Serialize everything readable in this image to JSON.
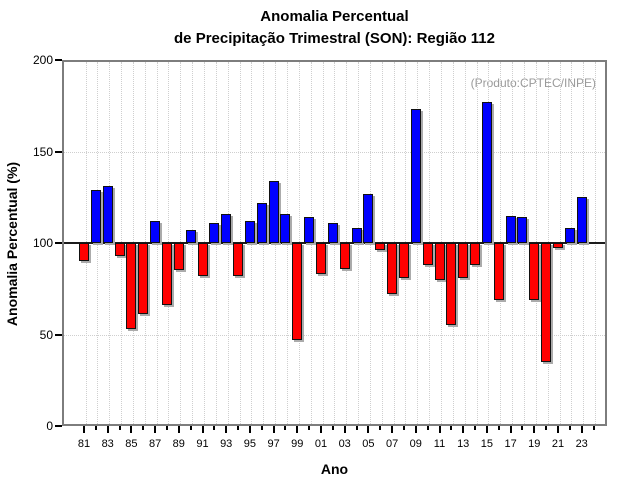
{
  "header": {
    "title_line1": "Anomalia Percentual",
    "title_line2": "de Precipitação Trimestral (SON): Região 112",
    "annotation": "(Produto:CPTEC/INPE)"
  },
  "chart_data": {
    "type": "bar",
    "title": "Anomalia Percentual de Precipitação Trimestral (SON): Região 112",
    "xlabel": "Ano",
    "ylabel": "Anomalia Percentual (%)",
    "ylim": [
      0,
      200
    ],
    "yticks": [
      0,
      50,
      100,
      150,
      200
    ],
    "baseline": 100,
    "grid": "dotted",
    "legend": "none",
    "bar_colors": {
      "above_baseline": "#0000ff",
      "below_baseline": "#ff0000"
    },
    "xtick_labels": [
      "81",
      "83",
      "85",
      "87",
      "89",
      "91",
      "93",
      "95",
      "97",
      "99",
      "01",
      "03",
      "05",
      "07",
      "09",
      "11",
      "13",
      "15",
      "17",
      "19",
      "21",
      "23"
    ],
    "years": [
      1981,
      1982,
      1983,
      1984,
      1985,
      1986,
      1987,
      1988,
      1989,
      1990,
      1991,
      1992,
      1993,
      1994,
      1995,
      1996,
      1997,
      1998,
      1999,
      2000,
      2001,
      2002,
      2003,
      2004,
      2005,
      2006,
      2007,
      2008,
      2009,
      2010,
      2011,
      2012,
      2013,
      2014,
      2015,
      2016,
      2017,
      2018,
      2019,
      2020,
      2021,
      2022,
      2023
    ],
    "values": [
      90,
      129,
      131,
      93,
      53,
      61,
      112,
      66,
      85,
      107,
      82,
      111,
      116,
      82,
      112,
      122,
      134,
      116,
      47,
      114,
      83,
      111,
      86,
      108,
      127,
      96,
      72,
      81,
      173,
      88,
      80,
      55,
      81,
      88,
      177,
      69,
      115,
      114,
      69,
      35,
      97,
      108,
      125
    ]
  }
}
